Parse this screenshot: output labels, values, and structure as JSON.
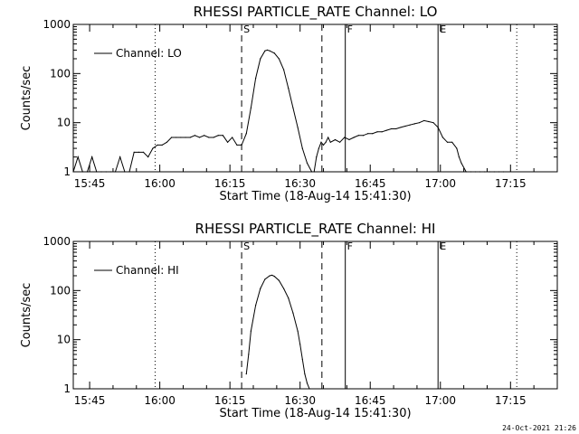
{
  "timestamp": "24-Oct-2021 21:26",
  "colors": {
    "background": "#ffffff",
    "foreground": "#000000"
  },
  "chart_data": [
    {
      "type": "line",
      "title": "RHESSI PARTICLE_RATE Channel: LO",
      "xlabel": "Start Time (18-Aug-14 15:41:30)",
      "ylabel": "Counts/sec",
      "y_scale": "log",
      "xlim": [
        "15:41:30",
        "17:25:00"
      ],
      "ylim": [
        1,
        1000
      ],
      "x_ticks": [
        "15:45",
        "16:00",
        "16:15",
        "16:30",
        "16:45",
        "17:00",
        "17:15"
      ],
      "y_ticks": [
        "1",
        "10",
        "100",
        "1000"
      ],
      "legend": {
        "entries": [
          "Channel: LO"
        ],
        "position": "top-left"
      },
      "markers": [
        {
          "label": "",
          "time": "15:59:00",
          "style": "dotted"
        },
        {
          "label": "S",
          "time": "16:17:30",
          "style": "dashed"
        },
        {
          "label": "",
          "time": "16:34:40",
          "style": "dashed"
        },
        {
          "label": "F",
          "time": "16:39:40",
          "style": "solid"
        },
        {
          "label": "E",
          "time": "16:59:30",
          "style": "solid"
        },
        {
          "label": "",
          "time": "17:16:20",
          "style": "dotted"
        }
      ],
      "series": [
        {
          "name": "Channel: LO",
          "x": [
            "15:41:30",
            "15:42:30",
            "15:43:30",
            "15:44:30",
            "15:45:30",
            "15:46:30",
            "15:47:30",
            "15:48:30",
            "15:49:30",
            "15:50:30",
            "15:51:30",
            "15:52:30",
            "15:53:30",
            "15:54:30",
            "15:55:30",
            "15:56:30",
            "15:57:30",
            "15:58:30",
            "15:59:30",
            "16:00:30",
            "16:01:30",
            "16:02:30",
            "16:03:30",
            "16:04:30",
            "16:05:30",
            "16:06:30",
            "16:07:30",
            "16:08:30",
            "16:09:30",
            "16:10:30",
            "16:11:30",
            "16:12:30",
            "16:13:30",
            "16:14:30",
            "16:15:30",
            "16:16:30",
            "16:17:30",
            "16:18:30",
            "16:19:30",
            "16:20:30",
            "16:21:30",
            "16:22:30",
            "16:23:00",
            "16:23:30",
            "16:24:30",
            "16:25:30",
            "16:26:30",
            "16:27:30",
            "16:28:30",
            "16:29:30",
            "16:30:30",
            "16:31:30",
            "16:32:30",
            "16:33:00",
            "16:33:30",
            "16:34:00",
            "16:34:30",
            "16:35:00",
            "16:35:30",
            "16:36:00",
            "16:36:30",
            "16:37:30",
            "16:38:30",
            "16:39:30",
            "16:40:30",
            "16:41:30",
            "16:42:30",
            "16:43:30",
            "16:44:30",
            "16:45:30",
            "16:46:30",
            "16:47:30",
            "16:48:30",
            "16:49:30",
            "16:50:30",
            "16:51:30",
            "16:52:30",
            "16:53:30",
            "16:54:30",
            "16:55:30",
            "16:56:30",
            "16:57:30",
            "16:58:30",
            "16:59:30",
            "17:00:30",
            "17:01:30",
            "17:02:30",
            "17:03:30",
            "17:04:00",
            "17:04:30",
            "17:05:30",
            "17:06:30",
            "17:07:30",
            "17:08:30",
            "17:09:30",
            "17:10:30",
            "17:11:30",
            "17:12:30",
            "17:13:30"
          ],
          "y": [
            1,
            2,
            1,
            1,
            2,
            1,
            1,
            1,
            1,
            1,
            2,
            1,
            1,
            2.5,
            2.5,
            2.5,
            2,
            3,
            3.5,
            3.5,
            4,
            5,
            5,
            5,
            5,
            5,
            5.5,
            5,
            5.5,
            5,
            5,
            5.5,
            5.5,
            4,
            5,
            3.5,
            3.5,
            6,
            20,
            80,
            200,
            290,
            300,
            290,
            260,
            200,
            120,
            50,
            20,
            8,
            3,
            1.5,
            1,
            1,
            2,
            3,
            4,
            3.5,
            4,
            5,
            4,
            4.5,
            4,
            5,
            4.5,
            5,
            5.5,
            5.5,
            6,
            6,
            6.5,
            6.5,
            7,
            7.5,
            7.5,
            8,
            8.5,
            9,
            9.5,
            10,
            11,
            10.5,
            10,
            8,
            5,
            4,
            4,
            3,
            2,
            1.5,
            1,
            1,
            1,
            1,
            1,
            1,
            1,
            1,
            1
          ]
        }
      ]
    },
    {
      "type": "line",
      "title": "RHESSI PARTICLE_RATE Channel: HI",
      "xlabel": "Start Time (18-Aug-14 15:41:30)",
      "ylabel": "Counts/sec",
      "y_scale": "log",
      "xlim": [
        "15:41:30",
        "17:25:00"
      ],
      "ylim": [
        1,
        1000
      ],
      "x_ticks": [
        "15:45",
        "16:00",
        "16:15",
        "16:30",
        "16:45",
        "17:00",
        "17:15"
      ],
      "y_ticks": [
        "1",
        "10",
        "100",
        "1000"
      ],
      "legend": {
        "entries": [
          "Channel: HI"
        ],
        "position": "top-left"
      },
      "markers": [
        {
          "label": "",
          "time": "15:59:00",
          "style": "dotted"
        },
        {
          "label": "S",
          "time": "16:17:30",
          "style": "dashed"
        },
        {
          "label": "",
          "time": "16:34:40",
          "style": "dashed"
        },
        {
          "label": "F",
          "time": "16:39:40",
          "style": "solid"
        },
        {
          "label": "E",
          "time": "16:59:30",
          "style": "solid"
        },
        {
          "label": "",
          "time": "17:16:20",
          "style": "dotted"
        }
      ],
      "series": [
        {
          "name": "Channel: HI",
          "x": [
            "16:18:30",
            "16:19:00",
            "16:19:30",
            "16:20:30",
            "16:21:30",
            "16:22:30",
            "16:23:30",
            "16:24:00",
            "16:24:30",
            "16:25:30",
            "16:26:30",
            "16:27:30",
            "16:28:30",
            "16:29:30",
            "16:30:00",
            "16:30:30",
            "16:31:00",
            "16:31:30",
            "16:32:00"
          ],
          "y": [
            2,
            5,
            15,
            50,
            110,
            170,
            200,
            205,
            195,
            160,
            110,
            70,
            35,
            15,
            8,
            4,
            2,
            1.3,
            1
          ]
        }
      ]
    }
  ]
}
